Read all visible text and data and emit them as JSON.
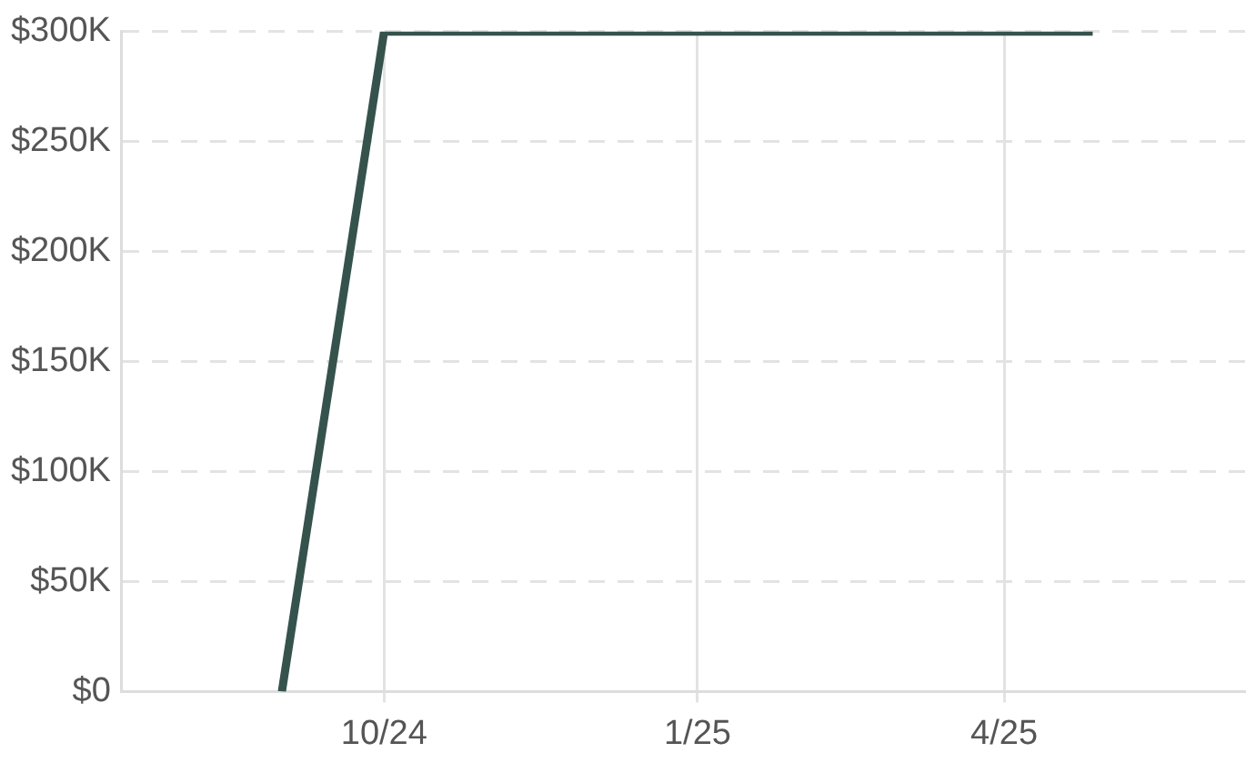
{
  "chart_data": {
    "type": "line",
    "x": [
      "2024-09-01",
      "2024-10-01",
      "2025-04-27"
    ],
    "series": [
      {
        "color": "#36524d",
        "values": [
          0,
          300000,
          300000
        ]
      }
    ],
    "xlim": [
      "2024-07-16",
      "2025-06-11"
    ],
    "xticks": [
      {
        "value": "2024-10-01",
        "label": "10/24"
      },
      {
        "value": "2025-01-01",
        "label": "1/25"
      },
      {
        "value": "2025-04-01",
        "label": "4/25"
      }
    ],
    "ylim": [
      0,
      300000
    ],
    "yticks": [
      {
        "value": 0,
        "label": "$0"
      },
      {
        "value": 50000,
        "label": "$50K"
      },
      {
        "value": 100000,
        "label": "$100K"
      },
      {
        "value": 150000,
        "label": "$150K"
      },
      {
        "value": 200000,
        "label": "$200K"
      },
      {
        "value": 250000,
        "label": "$250K"
      },
      {
        "value": 300000,
        "label": "$300K"
      }
    ],
    "grid": true,
    "legend": false,
    "marker": "none",
    "line_style": "solid"
  }
}
